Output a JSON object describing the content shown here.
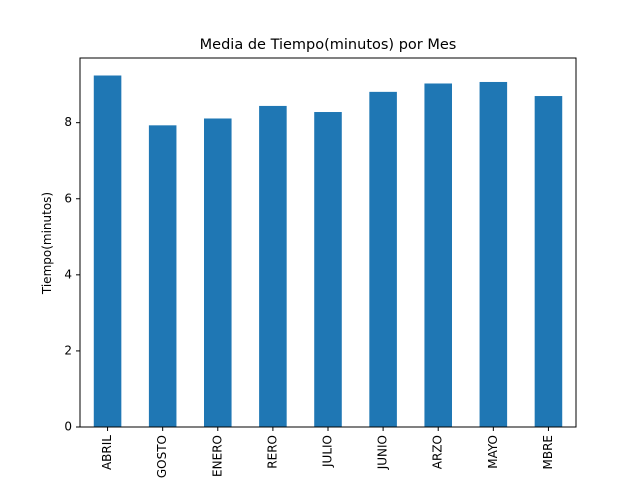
{
  "chart_data": {
    "type": "bar",
    "title": "Media de Tiempo(minutos) por Mes",
    "xlabel": "",
    "ylabel": "Tiempo(minutos)",
    "categories": [
      "ABRIL",
      "AGOSTO",
      "ENERO",
      "FEBRERO",
      "JULIO",
      "JUNIO",
      "MARZO",
      "MAYO",
      "NOVIEMBRE"
    ],
    "tick_labels_visible": [
      "ABRIL",
      "GOSTO",
      "ENERO",
      "RERO",
      "JULIO",
      "JUNIO",
      "ARZO",
      "MAYO",
      "MBRE"
    ],
    "values": [
      9.24,
      7.93,
      8.11,
      8.44,
      8.28,
      8.81,
      9.03,
      9.07,
      8.7
    ],
    "ylim": [
      0,
      9.7
    ],
    "yticks": [
      0,
      2,
      4,
      6,
      8
    ],
    "grid": false,
    "legend": "none",
    "bar_color": "#1f77b4"
  }
}
